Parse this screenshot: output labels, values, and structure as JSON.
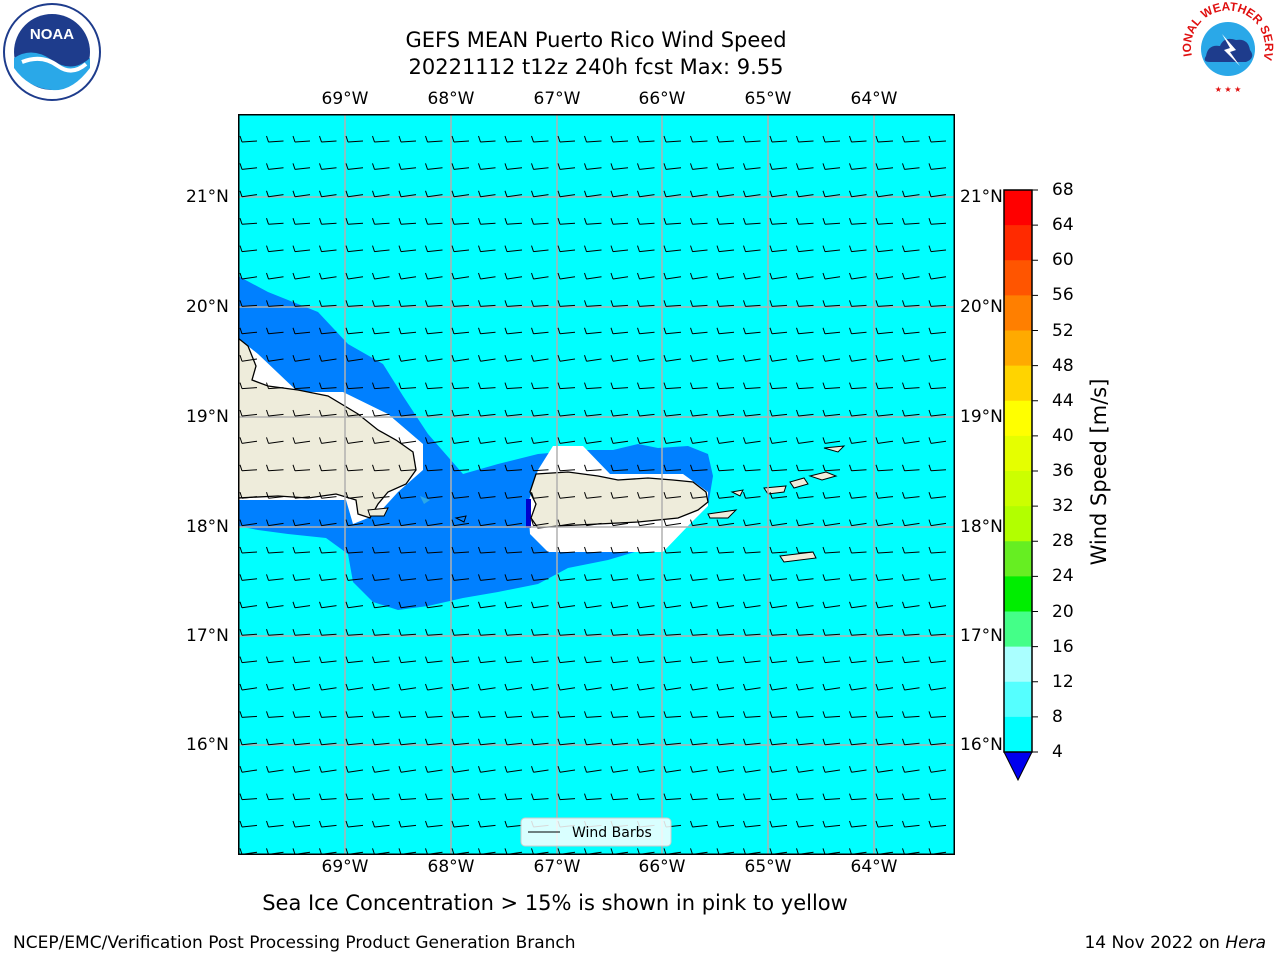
{
  "title": {
    "line1": "GEFS MEAN Puerto Rico Wind Speed",
    "line2": "20221112 t12z 240h fcst   Max: 9.55"
  },
  "axes": {
    "lon_labels": [
      "69°W",
      "68°W",
      "67°W",
      "66°W",
      "65°W",
      "64°W"
    ],
    "lat_labels": [
      "21°N",
      "20°N",
      "19°N",
      "18°N",
      "17°N",
      "16°N"
    ]
  },
  "legend": {
    "label": "Wind Barbs"
  },
  "colorbar": {
    "label": "Wind Speed [m/s]",
    "ticks": [
      "68",
      "64",
      "60",
      "56",
      "52",
      "48",
      "44",
      "40",
      "36",
      "32",
      "28",
      "24",
      "20",
      "16",
      "12",
      "8",
      "4"
    ],
    "colors": [
      "#ff0000",
      "#ff2a00",
      "#ff5500",
      "#ff7f00",
      "#ffaa00",
      "#ffd400",
      "#ffff00",
      "#e5ff00",
      "#ccff00",
      "#b2ff00",
      "#66ee22",
      "#00ee00",
      "#44ff88",
      "#aaffff",
      "#55ffff",
      "#00ffff",
      "#0080ff"
    ],
    "extend_color": "#0000ee"
  },
  "map_colors": {
    "ocean_8_12": "#00ffff",
    "ocean_4_8": "#0080ff",
    "land": "#eeecdb",
    "grid": "#b0b0b0"
  },
  "subtitle": "Sea Ice Concentration > 15% is shown in pink to yellow",
  "footer": {
    "left": "NCEP/EMC/Verification Post Processing Product Generation Branch",
    "date": "14 Nov 2022 on",
    "machine": "Hera"
  },
  "logos": {
    "noaa_text": "NOAA",
    "nws_text": "NATIONAL WEATHER SERVICE"
  }
}
